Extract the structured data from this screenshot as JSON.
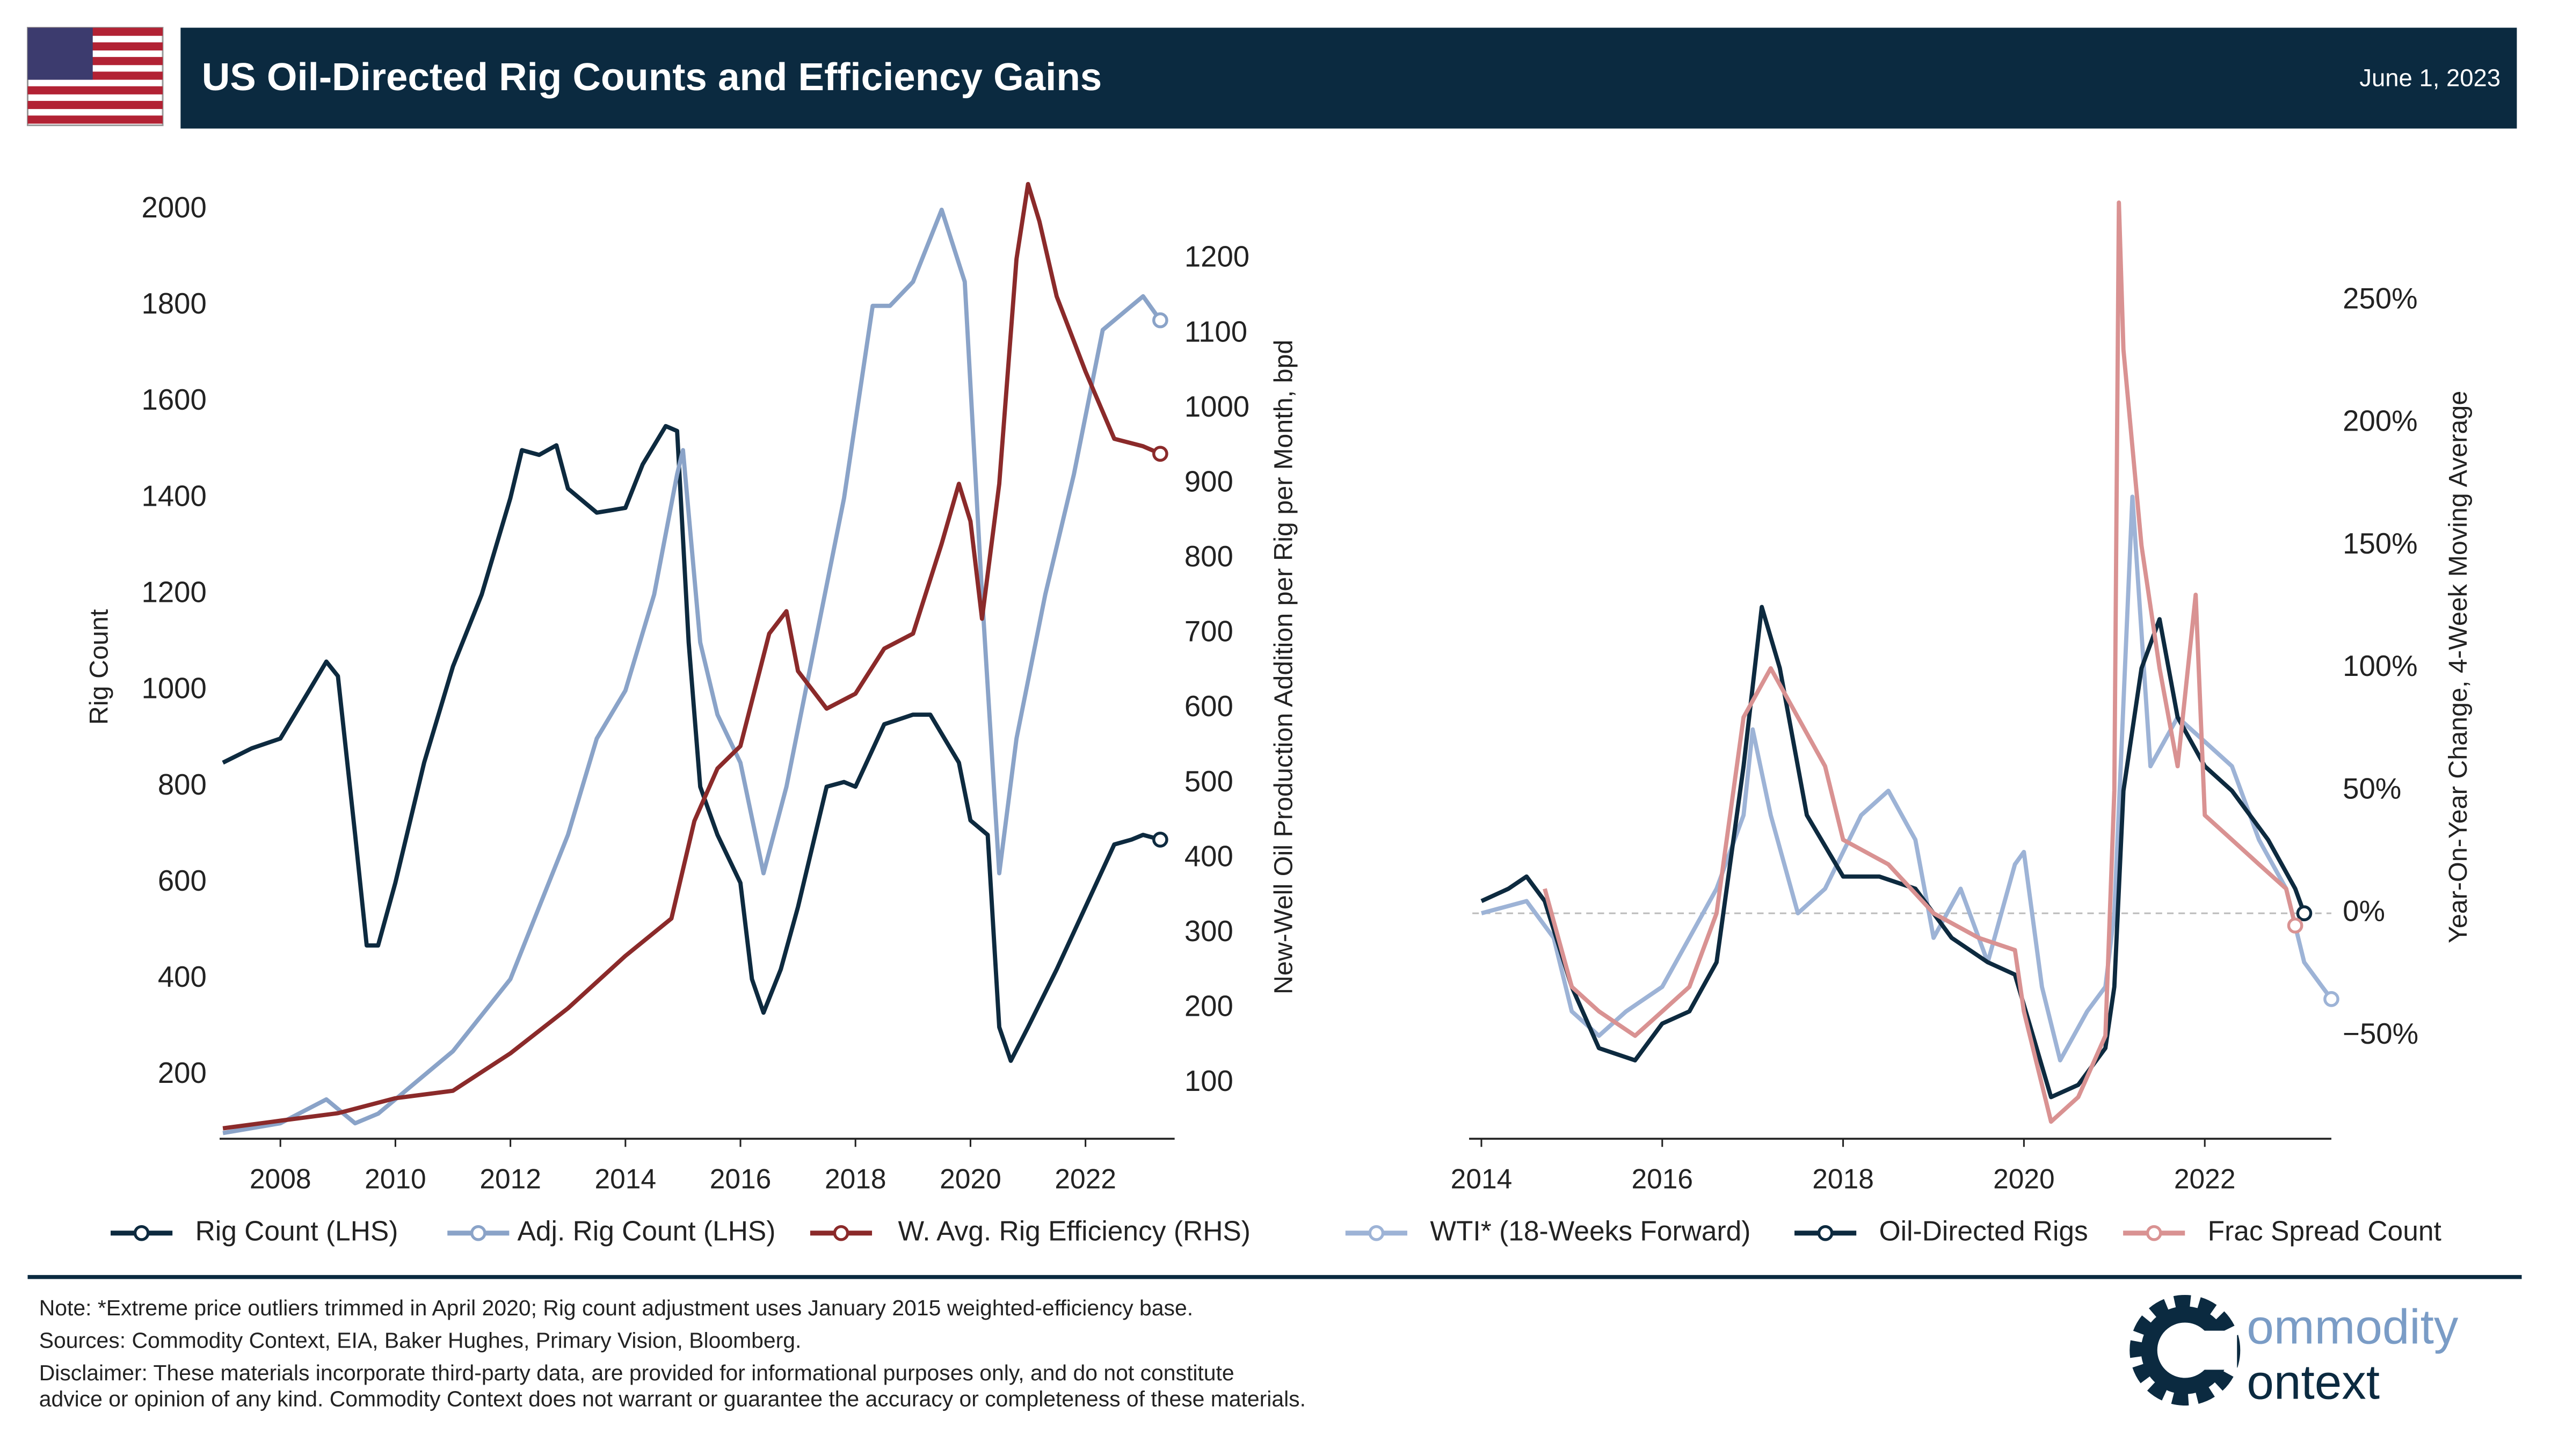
{
  "header": {
    "title": "US Oil-Directed Rig Counts and Efficiency Gains",
    "date": "June 1, 2023"
  },
  "chart_data": [
    {
      "type": "line",
      "y_label": "Rig Count",
      "y2_label": "New-Well Oil Production Addition per Rig per Month, bpd",
      "xlim": [
        2007,
        2023.55
      ],
      "xticks": [
        2008,
        2010,
        2012,
        2014,
        2016,
        2018,
        2020,
        2022
      ],
      "ylim": [
        68,
        2030
      ],
      "yticks": [
        200,
        400,
        600,
        800,
        1000,
        1200,
        1400,
        1600,
        1800,
        2000
      ],
      "y2lim": [
        26,
        1285
      ],
      "y2ticks": [
        100,
        200,
        300,
        400,
        500,
        600,
        700,
        800,
        900,
        1000,
        1100,
        1200
      ],
      "series": [
        {
          "name": "Rig Count (LHS)",
          "color": "#0d2a3f",
          "x": [
            2007,
            2007.5,
            2008,
            2008.5,
            2008.8,
            2009,
            2009.3,
            2009.5,
            2009.7,
            2010,
            2010.5,
            2011,
            2011.5,
            2012,
            2012.2,
            2012.5,
            2012.8,
            2013,
            2013.5,
            2014,
            2014.3,
            2014.7,
            2014.9,
            2015.1,
            2015.3,
            2015.6,
            2016,
            2016.2,
            2016.4,
            2016.7,
            2017,
            2017.5,
            2017.8,
            2018,
            2018.5,
            2019,
            2019.3,
            2019.8,
            2020,
            2020.3,
            2020.5,
            2020.7,
            2021,
            2021.5,
            2022,
            2022.5,
            2022.8,
            2023,
            2023.3
          ],
          "values": [
            850,
            880,
            900,
            1000,
            1060,
            1030,
            700,
            470,
            470,
            600,
            850,
            1050,
            1200,
            1400,
            1500,
            1490,
            1510,
            1420,
            1370,
            1380,
            1470,
            1550,
            1540,
            1100,
            800,
            700,
            600,
            400,
            330,
            420,
            550,
            800,
            810,
            800,
            930,
            950,
            950,
            850,
            730,
            700,
            300,
            230,
            300,
            420,
            550,
            680,
            690,
            700,
            690
          ]
        },
        {
          "name": "Adj. Rig Count (LHS)",
          "color": "#8aa3c8",
          "x": [
            2007,
            2008,
            2008.8,
            2009.3,
            2009.7,
            2010,
            2011,
            2012,
            2012.5,
            2013,
            2013.5,
            2014,
            2014.5,
            2014.9,
            2015,
            2015.3,
            2015.6,
            2016,
            2016.4,
            2016.8,
            2017.3,
            2017.8,
            2018.3,
            2018.6,
            2019,
            2019.5,
            2019.9,
            2020.2,
            2020.5,
            2020.8,
            2021.3,
            2021.8,
            2022.3,
            2022.8,
            2023,
            2023.3
          ],
          "values": [
            80,
            100,
            150,
            100,
            120,
            150,
            250,
            400,
            550,
            700,
            900,
            1000,
            1200,
            1450,
            1500,
            1100,
            950,
            850,
            620,
            800,
            1100,
            1400,
            1800,
            1800,
            1850,
            2000,
            1850,
            1200,
            620,
            900,
            1200,
            1450,
            1750,
            1800,
            1820,
            1770
          ]
        },
        {
          "name": "W. Avg. Rig Efficiency (RHS)",
          "color": "#8b2a2a",
          "axis": "y2",
          "x": [
            2007,
            2008,
            2009,
            2010,
            2011,
            2012,
            2013,
            2014,
            2014.8,
            2015.2,
            2015.6,
            2016,
            2016.5,
            2016.8,
            2017,
            2017.5,
            2018,
            2018.5,
            2019,
            2019.5,
            2019.8,
            2020,
            2020.2,
            2020.5,
            2020.8,
            2021,
            2021.2,
            2021.5,
            2022,
            2022.5,
            2023,
            2023.3
          ],
          "values": [
            40,
            50,
            60,
            80,
            90,
            140,
            200,
            270,
            320,
            450,
            520,
            550,
            700,
            730,
            650,
            600,
            620,
            680,
            700,
            820,
            900,
            850,
            720,
            900,
            1200,
            1300,
            1250,
            1150,
            1050,
            960,
            950,
            940
          ]
        }
      ]
    },
    {
      "type": "line",
      "y2_label": "Year-On-Year Change, 4-Week Moving Average",
      "xlim": [
        2013.9,
        2023.4
      ],
      "xticks": [
        2014,
        2016,
        2018,
        2020,
        2022
      ],
      "y2lim": [
        -92,
        293
      ],
      "y2ticks": [
        {
          "value": -50,
          "label": "−50%"
        },
        {
          "value": 0,
          "label": "0%"
        },
        {
          "value": 50,
          "label": "50%"
        },
        {
          "value": 100,
          "label": "100%"
        },
        {
          "value": 150,
          "label": "150%"
        },
        {
          "value": 200,
          "label": "200%"
        },
        {
          "value": 250,
          "label": "250%"
        }
      ],
      "series": [
        {
          "name": "WTI* (18-Weeks Forward)",
          "color": "#9db3d6",
          "axis": "y2",
          "x": [
            2014,
            2014.5,
            2014.8,
            2015,
            2015.3,
            2015.6,
            2016,
            2016.3,
            2016.6,
            2016.9,
            2017,
            2017.2,
            2017.5,
            2017.8,
            2018.2,
            2018.5,
            2018.8,
            2019,
            2019.3,
            2019.6,
            2019.9,
            2020,
            2020.2,
            2020.4,
            2020.7,
            2020.9,
            2021,
            2021.2,
            2021.4,
            2021.7,
            2022,
            2022.3,
            2022.6,
            2022.9,
            2023.1,
            2023.3,
            2023.4
          ],
          "values": [
            0,
            5,
            -10,
            -40,
            -50,
            -40,
            -30,
            -10,
            10,
            40,
            75,
            40,
            0,
            10,
            40,
            50,
            30,
            -10,
            10,
            -20,
            20,
            25,
            -30,
            -60,
            -40,
            -30,
            0,
            170,
            60,
            80,
            70,
            60,
            30,
            10,
            -20,
            -30,
            -35
          ]
        },
        {
          "name": "Oil-Directed Rigs",
          "color": "#0d2a3f",
          "axis": "y2",
          "x": [
            2014,
            2014.3,
            2014.5,
            2014.7,
            2015,
            2015.3,
            2015.7,
            2016,
            2016.3,
            2016.6,
            2016.9,
            2017.1,
            2017.3,
            2017.6,
            2018,
            2018.4,
            2018.8,
            2019.2,
            2019.6,
            2019.9,
            2020.1,
            2020.3,
            2020.6,
            2020.9,
            2021,
            2021.1,
            2021.3,
            2021.5,
            2021.7,
            2022,
            2022.3,
            2022.7,
            2023,
            2023.1
          ],
          "values": [
            5,
            10,
            15,
            5,
            -30,
            -55,
            -60,
            -45,
            -40,
            -20,
            60,
            125,
            100,
            40,
            15,
            15,
            10,
            -10,
            -20,
            -25,
            -50,
            -75,
            -70,
            -55,
            -30,
            50,
            100,
            120,
            80,
            60,
            50,
            30,
            10,
            0
          ]
        },
        {
          "name": "Frac Spread Count",
          "color": "#d99292",
          "axis": "y2",
          "x": [
            2014.7,
            2015,
            2015.3,
            2015.7,
            2016,
            2016.3,
            2016.6,
            2016.9,
            2017.2,
            2017.5,
            2017.8,
            2018,
            2018.5,
            2019,
            2019.5,
            2019.9,
            2020,
            2020.3,
            2020.6,
            2020.9,
            2021,
            2021.05,
            2021.1,
            2021.3,
            2021.5,
            2021.7,
            2021.9,
            2022,
            2022.3,
            2022.6,
            2022.9,
            2023
          ],
          "values": [
            10,
            -30,
            -40,
            -50,
            -40,
            -30,
            0,
            80,
            100,
            80,
            60,
            30,
            20,
            0,
            -10,
            -15,
            -40,
            -85,
            -75,
            -50,
            50,
            290,
            230,
            150,
            100,
            60,
            130,
            40,
            30,
            20,
            10,
            -5
          ]
        }
      ]
    }
  ],
  "footer": {
    "note": "Note: *Extreme price outliers trimmed in April 2020; Rig count adjustment uses January 2015 weighted-efficiency base.",
    "sources": "Sources: Commodity Context, EIA, Baker Hughes, Primary Vision, Bloomberg.",
    "disclaimer": [
      "Disclaimer: These materials incorporate third-party data, are provided for informational purposes only, and do not constitute",
      "advice or opinion of any kind. Commodity Context does not warrant or guarantee the accuracy or completeness of these materials."
    ]
  },
  "logo": {
    "line1": "ommodity",
    "line2": "ontext"
  }
}
